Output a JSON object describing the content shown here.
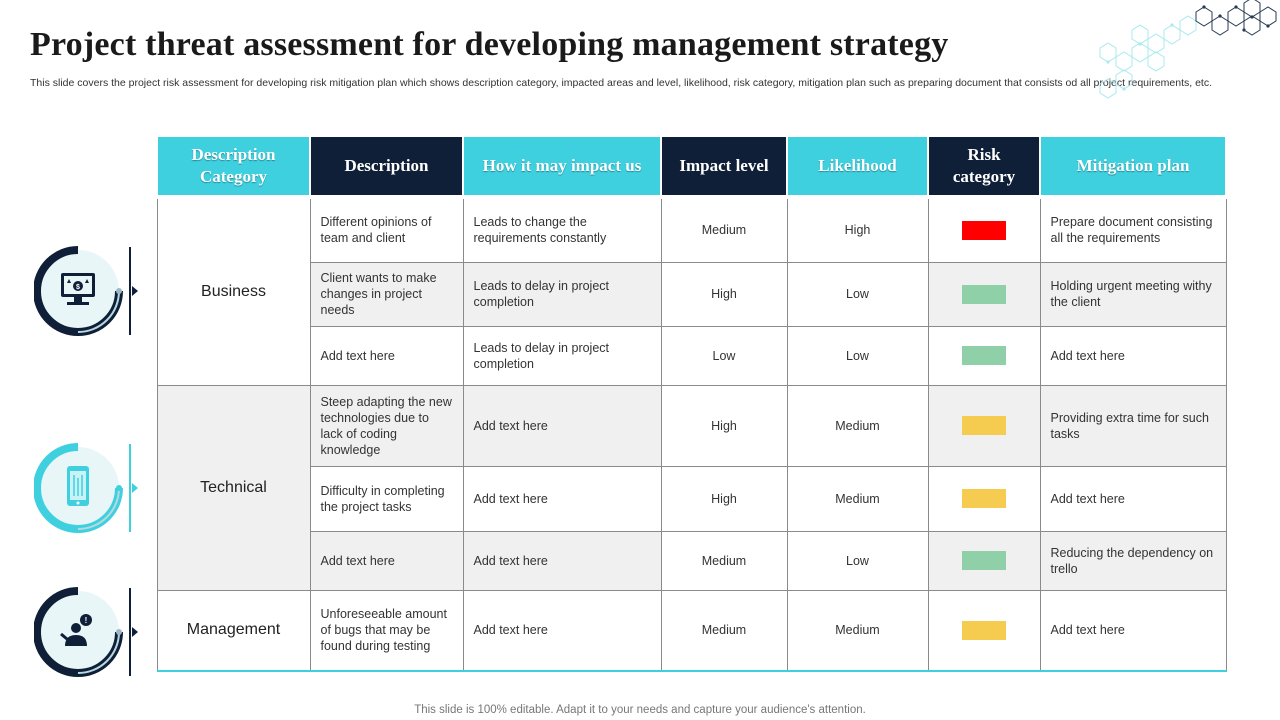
{
  "title": "Project threat assessment for developing management strategy",
  "subtitle": "This slide covers the project risk assessment for developing risk mitigation plan which shows description category, impacted areas and level, likelihood, risk category, mitigation plan such as preparing document that consists od all project requirements, etc.",
  "table": {
    "headers": [
      "Description Category",
      "Description",
      "How it may impact us",
      "Impact level",
      "Likelihood",
      "Risk category",
      "Mitigation plan"
    ],
    "categories": [
      "Business",
      "Technical",
      "Management"
    ],
    "rows": [
      {
        "description": "Different  opinions of team and client",
        "impact": "Leads to change the requirements constantly",
        "level": "Medium",
        "likelihood": "High",
        "mitigation": "Prepare document consisting all the requirements"
      },
      {
        "description": "Client wants to make changes in project needs",
        "impact": "Leads to delay in project completion",
        "level": "High",
        "likelihood": "Low",
        "mitigation": "Holding urgent meeting withy the client"
      },
      {
        "description": "Add text here",
        "impact": "Leads to delay in project completion",
        "level": "Low",
        "likelihood": "Low",
        "mitigation": "Add text here"
      },
      {
        "description": "Steep adapting the new technologies due to lack of coding knowledge",
        "impact": "Add text here",
        "level": "High",
        "likelihood": "Medium",
        "mitigation": "Providing  extra time for such tasks"
      },
      {
        "description": "Difficulty in completing the project tasks",
        "impact": "Add text here",
        "level": "High",
        "likelihood": "Medium",
        "mitigation": "Add text here"
      },
      {
        "description": "Add text here",
        "impact": "Add text here",
        "level": "Medium",
        "likelihood": "Low",
        "mitigation": "Reducing  the dependency on trello"
      },
      {
        "description": "Unforeseeable amount of bugs that may be found during testing",
        "impact": "Add text here",
        "level": "Medium",
        "likelihood": "Medium",
        "mitigation": "Add text here"
      }
    ],
    "risk_colors": [
      "#ff0000",
      "#8fd0a8",
      "#8fd0a8",
      "#f5cc50",
      "#f5cc50",
      "#8fd0a8",
      "#f5cc50"
    ]
  },
  "icons": [
    "monitor-dollar-icon",
    "smartphone-circuit-icon",
    "person-alert-icon"
  ],
  "colors": {
    "cyan": "#3fd0e0",
    "navy": "#0f1f38",
    "high_risk": "#ff0000",
    "low_risk": "#8fd0a8",
    "medium_risk": "#f5cc50"
  },
  "footer": "This slide is 100% editable. Adapt it to your needs and capture your audience's attention."
}
